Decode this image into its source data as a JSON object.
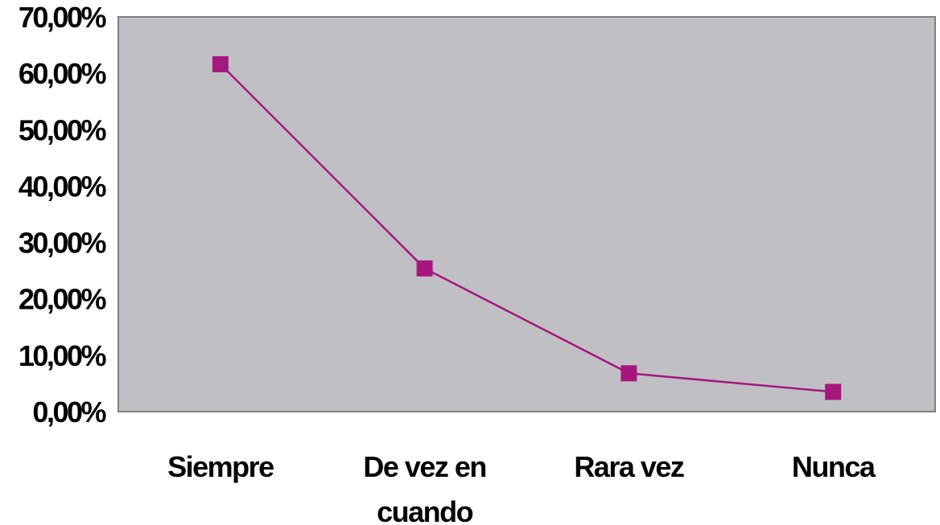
{
  "chart_data": {
    "type": "line",
    "categories": [
      "Siempre",
      "De vez en cuando",
      "Rara vez",
      "Nunca"
    ],
    "category_label_lines": [
      [
        "Siempre"
      ],
      [
        "De vez en",
        "cuando"
      ],
      [
        "Rara vez"
      ],
      [
        "Nunca"
      ]
    ],
    "series": [
      {
        "values": [
          61.6,
          25.4,
          6.8,
          3.5
        ],
        "color": "#a5177d",
        "marker": "square"
      }
    ],
    "ylim": [
      0,
      70
    ],
    "yticks": [
      0,
      10,
      20,
      30,
      40,
      50,
      60,
      70
    ],
    "ytick_labels": [
      "0,00%",
      "10,00%",
      "20,00%",
      "30,00%",
      "40,00%",
      "50,00%",
      "60,00%",
      "70,00%"
    ],
    "title": "",
    "xlabel": "",
    "ylabel": "",
    "legend": "none",
    "grid": false,
    "plot_background": "#c0c0c4"
  }
}
